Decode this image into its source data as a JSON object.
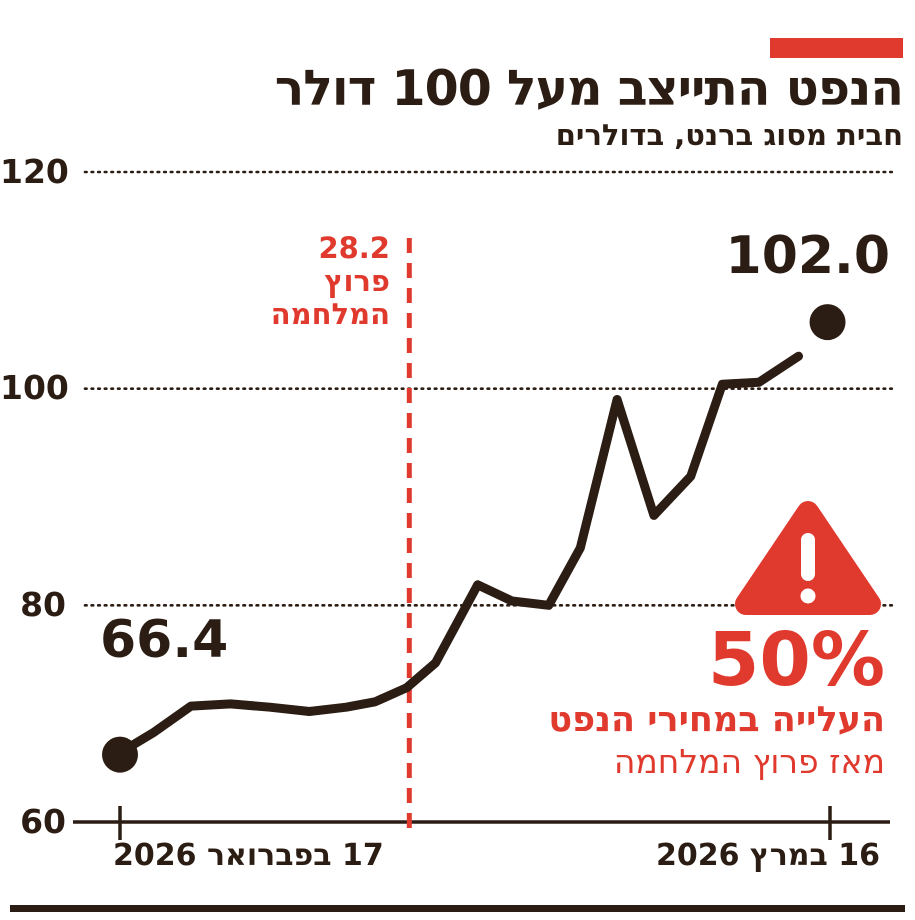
{
  "meta": {
    "background": "#ffffff",
    "ink_color": "#2b1d13",
    "accent_red": "#e03a2e"
  },
  "header": {
    "title": "הנפט התייצב מעל 100 דולר",
    "subtitle": "חבית מסוג ברנט, בדולרים"
  },
  "chart_data": {
    "type": "line",
    "title": "הנפט התייצב מעל 100 דולר",
    "subtitle": "חבית מסוג ברנט, בדולרים",
    "ylim": [
      60,
      120
    ],
    "yticks": [
      120,
      100,
      80,
      60
    ],
    "grid": "dotted horizontal lines at 80, 100, 120; solid baseline at 60",
    "legend": "none",
    "x_axis": {
      "start_label": "17 בפברואר 2026",
      "end_label": "16 במרץ 2026",
      "span_days": 27
    },
    "annotation_line": {
      "date_label": "28.2",
      "label_lines": [
        "פרוץ",
        "המלחמה"
      ],
      "x_day_offset": 11,
      "style": "dashed",
      "color": "#e03a2e"
    },
    "series": [
      {
        "points": [
          {
            "d": 0,
            "v": 66.4
          },
          {
            "d": 1.3,
            "v": 68.3
          },
          {
            "d": 2.7,
            "v": 70.7
          },
          {
            "d": 4.2,
            "v": 70.9
          },
          {
            "d": 5.7,
            "v": 70.6
          },
          {
            "d": 7.2,
            "v": 70.2
          },
          {
            "d": 8.6,
            "v": 70.6
          },
          {
            "d": 9.7,
            "v": 71.1
          },
          {
            "d": 10.9,
            "v": 72.4
          },
          {
            "d": 12,
            "v": 74.7
          },
          {
            "d": 13.6,
            "v": 81.9
          },
          {
            "d": 14.9,
            "v": 80.4
          },
          {
            "d": 16.3,
            "v": 80.0
          },
          {
            "d": 17.5,
            "v": 85.3
          },
          {
            "d": 18.9,
            "v": 99.0
          },
          {
            "d": 20.3,
            "v": 88.3
          },
          {
            "d": 21.7,
            "v": 91.9
          },
          {
            "d": 22.9,
            "v": 100.4
          },
          {
            "d": 24.3,
            "v": 100.6
          },
          {
            "d": 25.8,
            "v": 103.0
          }
        ]
      }
    ],
    "endpoint_labels": {
      "start": "66.4",
      "end": "102.0"
    },
    "callout": {
      "icon": "warning-triangle-icon",
      "value": "50%",
      "line1": "העלייה במחירי הנפט",
      "line2": "מאז פרוץ המלחמה"
    }
  }
}
